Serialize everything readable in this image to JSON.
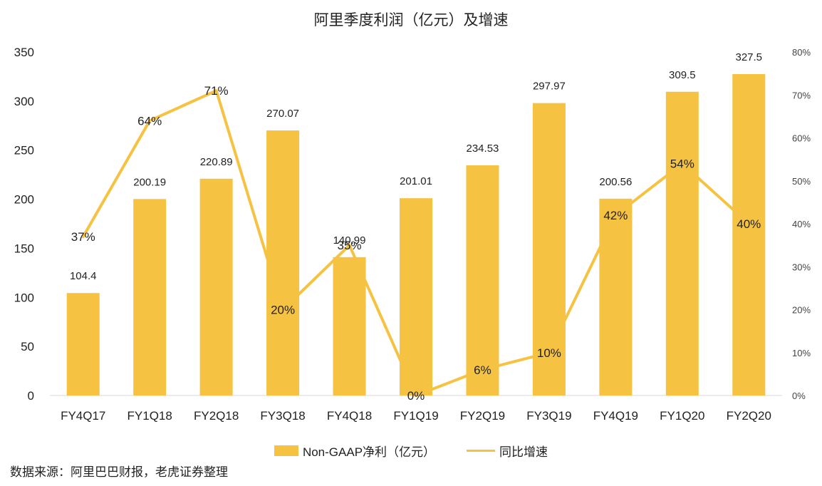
{
  "chart_data": {
    "type": "bar",
    "title": "阿里季度利润（亿元）及增速",
    "categories": [
      "FY4Q17",
      "FY1Q18",
      "FY2Q18",
      "FY3Q18",
      "FY4Q18",
      "FY1Q19",
      "FY2Q19",
      "FY3Q19",
      "FY4Q19",
      "FY1Q20",
      "FY2Q20"
    ],
    "series": [
      {
        "name": "Non-GAAP净利（亿元）",
        "type": "bar",
        "axis": "left",
        "color": "#F5C242",
        "values": [
          104.4,
          200.19,
          220.89,
          270.07,
          140.99,
          201.01,
          234.53,
          297.97,
          200.56,
          309.5,
          327.5
        ],
        "labels": [
          "104.4",
          "200.19",
          "220.89",
          "270.07",
          "140.99",
          "201.01",
          "234.53",
          "297.97",
          "200.56",
          "309.5",
          "327.5"
        ]
      },
      {
        "name": "同比增速",
        "type": "line",
        "axis": "right",
        "color": "#F5C242",
        "values": [
          37,
          64,
          71,
          20,
          35,
          0,
          6,
          10,
          42,
          54,
          40
        ],
        "labels": [
          "37%",
          "64%",
          "71%",
          "20%",
          "35%",
          "0%",
          "6%",
          "10%",
          "42%",
          "54%",
          "40%"
        ]
      }
    ],
    "y_left": {
      "min": 0,
      "max": 350,
      "ticks": [
        "0",
        "50",
        "100",
        "150",
        "200",
        "250",
        "300",
        "350"
      ]
    },
    "y_right": {
      "min": 0,
      "max": 80,
      "ticks": [
        "0%",
        "10%",
        "20%",
        "30%",
        "40%",
        "50%",
        "60%",
        "70%",
        "80%"
      ]
    },
    "grid": false,
    "legend_position": "bottom"
  },
  "source_note": "数据来源：阿里巴巴财报，老虎证券整理"
}
